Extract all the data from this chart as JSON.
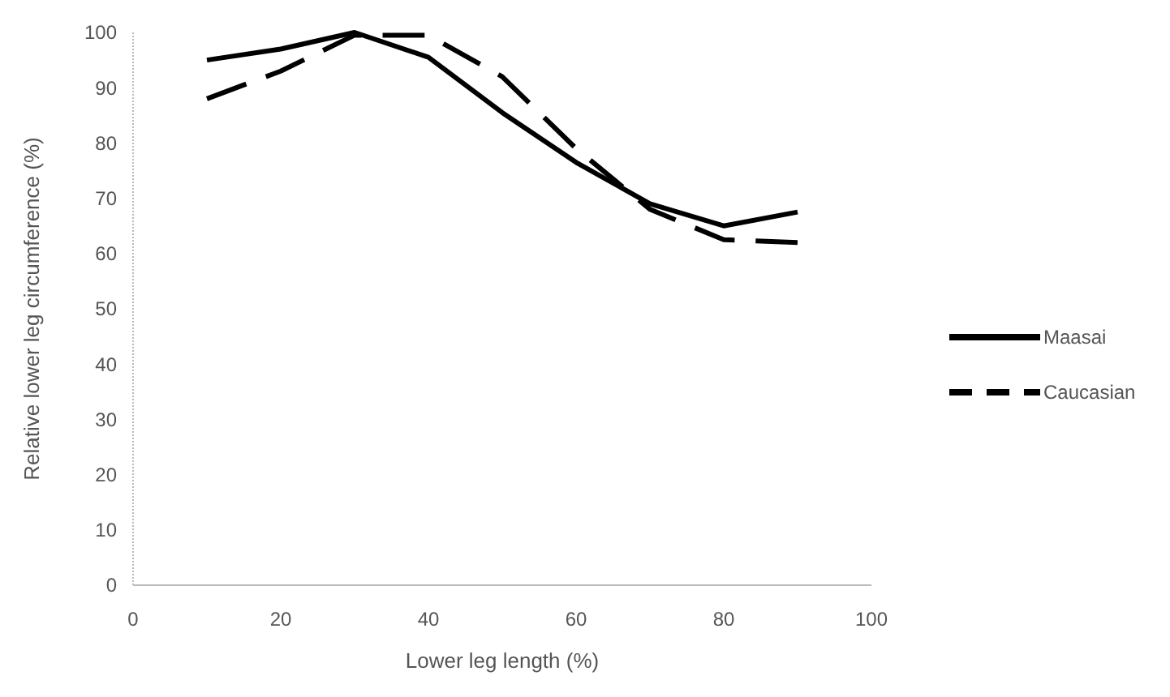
{
  "chart_data": {
    "type": "line",
    "xlabel": "Lower leg length (%)",
    "ylabel": "Relative lower leg circumference (%)",
    "xlim": [
      0,
      100
    ],
    "xticks": [
      0,
      20,
      40,
      60,
      80,
      100
    ],
    "ylim": [
      0,
      100
    ],
    "yticks": [
      0,
      10,
      20,
      30,
      40,
      50,
      60,
      70,
      80,
      90,
      100
    ],
    "grid": false,
    "legend": "right",
    "series": [
      {
        "name": "Maasai",
        "color": "#000000",
        "line_style": "solid",
        "x": [
          10,
          20,
          30,
          40,
          50,
          60,
          70,
          80,
          90
        ],
        "values": [
          95,
          97,
          100,
          95.5,
          85.5,
          76.5,
          69,
          65,
          67.5
        ]
      },
      {
        "name": "Caucasian",
        "color": "#000000",
        "line_style": "dashed",
        "x": [
          10,
          20,
          30,
          40,
          50,
          60,
          70,
          80,
          90
        ],
        "values": [
          88,
          93,
          99.5,
          99.5,
          92,
          79,
          68,
          62.5,
          62
        ]
      }
    ]
  }
}
